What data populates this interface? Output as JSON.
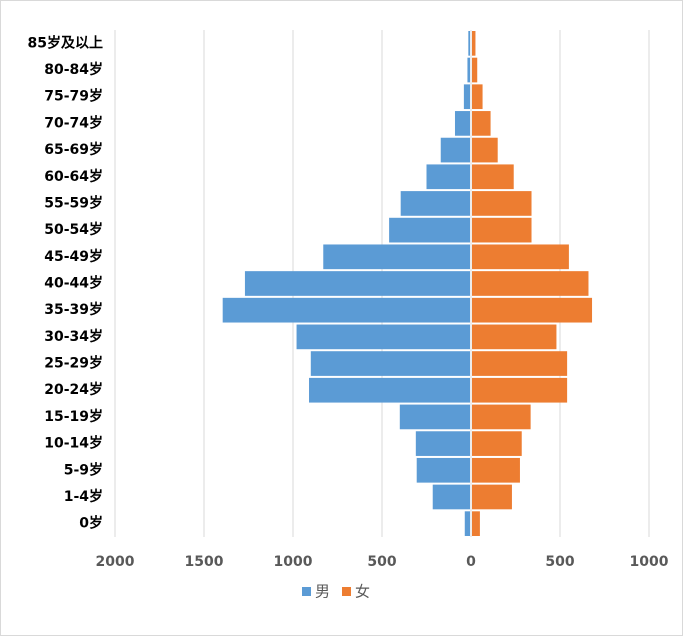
{
  "chart_data": {
    "type": "bar",
    "orientation": "horizontal",
    "stacked": false,
    "categories": [
      "85岁及以上",
      "80-84岁",
      "75-79岁",
      "70-74岁",
      "65-69岁",
      "60-64岁",
      "55-59岁",
      "50-54岁",
      "45-49岁",
      "40-44岁",
      "35-39岁",
      "30-34岁",
      "25-29岁",
      "20-24岁",
      "15-19岁",
      "10-14岁",
      "5-9岁",
      "1-4岁",
      "0岁"
    ],
    "series": [
      {
        "name": "男",
        "color": "#5b9bd5",
        "values": [
          -15,
          -20,
          -40,
          -90,
          -170,
          -250,
          -395,
          -460,
          -830,
          -1270,
          -1395,
          -980,
          -900,
          -910,
          -400,
          -310,
          -305,
          -215,
          -35
        ]
      },
      {
        "name": "女",
        "color": "#ed7d31",
        "values": [
          25,
          35,
          65,
          110,
          150,
          240,
          340,
          340,
          550,
          660,
          680,
          480,
          540,
          540,
          335,
          285,
          275,
          230,
          50
        ]
      }
    ],
    "xlim": [
      -2000,
      1000
    ],
    "xticks": [
      {
        "value": -2000,
        "label": "2000"
      },
      {
        "value": -1500,
        "label": "1500"
      },
      {
        "value": -1000,
        "label": "1000"
      },
      {
        "value": -500,
        "label": "500"
      },
      0,
      500,
      1000
    ],
    "grid": true,
    "legend": "bottom"
  }
}
